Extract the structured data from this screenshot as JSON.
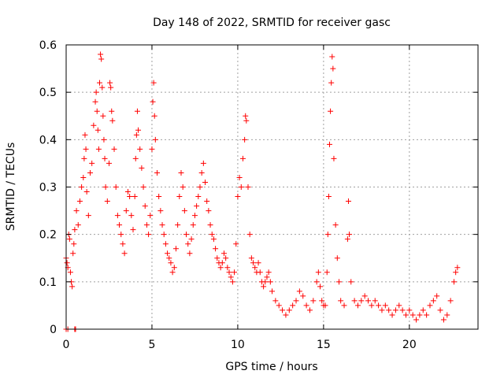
{
  "chart_data": {
    "type": "scatter",
    "title": "Day 148 of 2022, SRMTID for receiver gasc",
    "xlabel": "GPS time / hours",
    "ylabel": "SRMTID / TECUs",
    "xlim": [
      0,
      24
    ],
    "ylim": [
      0,
      0.6
    ],
    "xticks": [
      0,
      5,
      10,
      15,
      20
    ],
    "xtick_labels": [
      "0",
      "5",
      "10",
      "15",
      "20"
    ],
    "yticks": [
      0,
      0.1,
      0.2,
      0.3,
      0.4,
      0.5,
      0.6
    ],
    "ytick_labels": [
      "0",
      "0.1",
      "0.2",
      "0.3",
      "0.4",
      "0.5",
      "0.6"
    ],
    "grid": true,
    "marker": "plus",
    "color": "#ff0000",
    "series": [
      {
        "name": "SRMTID",
        "points": [
          [
            0.0,
            0.0
          ],
          [
            0.1,
            0.0
          ],
          [
            0.5,
            0.0
          ],
          [
            0.55,
            0.0
          ],
          [
            0.0,
            0.15
          ],
          [
            0.05,
            0.14
          ],
          [
            0.1,
            0.13
          ],
          [
            0.15,
            0.2
          ],
          [
            0.2,
            0.19
          ],
          [
            0.25,
            0.12
          ],
          [
            0.3,
            0.1
          ],
          [
            0.35,
            0.09
          ],
          [
            0.4,
            0.16
          ],
          [
            0.45,
            0.18
          ],
          [
            0.5,
            0.21
          ],
          [
            0.6,
            0.25
          ],
          [
            0.7,
            0.22
          ],
          [
            0.8,
            0.27
          ],
          [
            0.9,
            0.3
          ],
          [
            1.0,
            0.32
          ],
          [
            1.05,
            0.36
          ],
          [
            1.1,
            0.41
          ],
          [
            1.15,
            0.38
          ],
          [
            1.2,
            0.29
          ],
          [
            1.3,
            0.24
          ],
          [
            1.4,
            0.33
          ],
          [
            1.5,
            0.35
          ],
          [
            1.6,
            0.43
          ],
          [
            1.7,
            0.48
          ],
          [
            1.75,
            0.5
          ],
          [
            1.8,
            0.46
          ],
          [
            1.85,
            0.42
          ],
          [
            1.9,
            0.38
          ],
          [
            1.95,
            0.52
          ],
          [
            2.0,
            0.58
          ],
          [
            2.05,
            0.57
          ],
          [
            2.1,
            0.51
          ],
          [
            2.15,
            0.45
          ],
          [
            2.2,
            0.4
          ],
          [
            2.25,
            0.36
          ],
          [
            2.3,
            0.3
          ],
          [
            2.4,
            0.27
          ],
          [
            2.5,
            0.35
          ],
          [
            2.55,
            0.52
          ],
          [
            2.6,
            0.51
          ],
          [
            2.65,
            0.46
          ],
          [
            2.7,
            0.44
          ],
          [
            2.8,
            0.38
          ],
          [
            2.9,
            0.3
          ],
          [
            3.0,
            0.24
          ],
          [
            3.1,
            0.22
          ],
          [
            3.2,
            0.2
          ],
          [
            3.3,
            0.18
          ],
          [
            3.4,
            0.16
          ],
          [
            3.5,
            0.25
          ],
          [
            3.6,
            0.29
          ],
          [
            3.7,
            0.28
          ],
          [
            3.8,
            0.24
          ],
          [
            3.9,
            0.21
          ],
          [
            4.0,
            0.28
          ],
          [
            4.05,
            0.36
          ],
          [
            4.1,
            0.41
          ],
          [
            4.15,
            0.46
          ],
          [
            4.2,
            0.42
          ],
          [
            4.3,
            0.38
          ],
          [
            4.4,
            0.34
          ],
          [
            4.5,
            0.3
          ],
          [
            4.6,
            0.26
          ],
          [
            4.7,
            0.22
          ],
          [
            4.8,
            0.2
          ],
          [
            4.9,
            0.24
          ],
          [
            5.0,
            0.38
          ],
          [
            5.05,
            0.48
          ],
          [
            5.1,
            0.52
          ],
          [
            5.15,
            0.45
          ],
          [
            5.2,
            0.4
          ],
          [
            5.3,
            0.33
          ],
          [
            5.4,
            0.28
          ],
          [
            5.5,
            0.25
          ],
          [
            5.6,
            0.22
          ],
          [
            5.7,
            0.2
          ],
          [
            5.8,
            0.18
          ],
          [
            5.9,
            0.16
          ],
          [
            6.0,
            0.15
          ],
          [
            6.1,
            0.14
          ],
          [
            6.2,
            0.12
          ],
          [
            6.3,
            0.13
          ],
          [
            6.4,
            0.17
          ],
          [
            6.5,
            0.22
          ],
          [
            6.6,
            0.28
          ],
          [
            6.7,
            0.33
          ],
          [
            6.8,
            0.3
          ],
          [
            6.9,
            0.25
          ],
          [
            7.0,
            0.2
          ],
          [
            7.1,
            0.18
          ],
          [
            7.2,
            0.16
          ],
          [
            7.3,
            0.19
          ],
          [
            7.4,
            0.22
          ],
          [
            7.5,
            0.24
          ],
          [
            7.6,
            0.26
          ],
          [
            7.7,
            0.28
          ],
          [
            7.8,
            0.3
          ],
          [
            7.9,
            0.33
          ],
          [
            8.0,
            0.35
          ],
          [
            8.1,
            0.31
          ],
          [
            8.2,
            0.27
          ],
          [
            8.3,
            0.25
          ],
          [
            8.4,
            0.22
          ],
          [
            8.5,
            0.2
          ],
          [
            8.6,
            0.19
          ],
          [
            8.7,
            0.17
          ],
          [
            8.8,
            0.15
          ],
          [
            8.9,
            0.14
          ],
          [
            9.0,
            0.13
          ],
          [
            9.1,
            0.14
          ],
          [
            9.2,
            0.16
          ],
          [
            9.3,
            0.15
          ],
          [
            9.4,
            0.13
          ],
          [
            9.5,
            0.12
          ],
          [
            9.6,
            0.11
          ],
          [
            9.7,
            0.1
          ],
          [
            9.8,
            0.12
          ],
          [
            9.9,
            0.18
          ],
          [
            10.0,
            0.28
          ],
          [
            10.1,
            0.32
          ],
          [
            10.2,
            0.3
          ],
          [
            10.3,
            0.36
          ],
          [
            10.4,
            0.4
          ],
          [
            10.45,
            0.45
          ],
          [
            10.5,
            0.44
          ],
          [
            10.6,
            0.3
          ],
          [
            10.7,
            0.2
          ],
          [
            10.8,
            0.15
          ],
          [
            10.9,
            0.14
          ],
          [
            11.0,
            0.13
          ],
          [
            11.1,
            0.12
          ],
          [
            11.2,
            0.14
          ],
          [
            11.3,
            0.12
          ],
          [
            11.4,
            0.1
          ],
          [
            11.5,
            0.09
          ],
          [
            11.6,
            0.1
          ],
          [
            11.7,
            0.11
          ],
          [
            11.8,
            0.12
          ],
          [
            11.9,
            0.1
          ],
          [
            12.0,
            0.08
          ],
          [
            12.2,
            0.06
          ],
          [
            12.4,
            0.05
          ],
          [
            12.6,
            0.04
          ],
          [
            12.8,
            0.03
          ],
          [
            13.0,
            0.04
          ],
          [
            13.2,
            0.05
          ],
          [
            13.4,
            0.06
          ],
          [
            13.6,
            0.08
          ],
          [
            13.8,
            0.07
          ],
          [
            14.0,
            0.05
          ],
          [
            14.2,
            0.04
          ],
          [
            14.4,
            0.06
          ],
          [
            14.6,
            0.1
          ],
          [
            14.7,
            0.12
          ],
          [
            14.8,
            0.09
          ],
          [
            14.9,
            0.06
          ],
          [
            15.0,
            0.05
          ],
          [
            15.1,
            0.05
          ],
          [
            15.2,
            0.12
          ],
          [
            15.25,
            0.2
          ],
          [
            15.3,
            0.28
          ],
          [
            15.35,
            0.39
          ],
          [
            15.4,
            0.46
          ],
          [
            15.45,
            0.52
          ],
          [
            15.5,
            0.575
          ],
          [
            15.55,
            0.55
          ],
          [
            15.6,
            0.36
          ],
          [
            15.7,
            0.22
          ],
          [
            15.8,
            0.15
          ],
          [
            15.9,
            0.1
          ],
          [
            16.0,
            0.06
          ],
          [
            16.2,
            0.05
          ],
          [
            16.4,
            0.19
          ],
          [
            16.45,
            0.27
          ],
          [
            16.5,
            0.2
          ],
          [
            16.6,
            0.1
          ],
          [
            16.8,
            0.06
          ],
          [
            17.0,
            0.05
          ],
          [
            17.2,
            0.06
          ],
          [
            17.4,
            0.07
          ],
          [
            17.6,
            0.06
          ],
          [
            17.8,
            0.05
          ],
          [
            18.0,
            0.06
          ],
          [
            18.2,
            0.05
          ],
          [
            18.4,
            0.04
          ],
          [
            18.6,
            0.05
          ],
          [
            18.8,
            0.04
          ],
          [
            19.0,
            0.03
          ],
          [
            19.2,
            0.04
          ],
          [
            19.4,
            0.05
          ],
          [
            19.6,
            0.04
          ],
          [
            19.8,
            0.03
          ],
          [
            20.0,
            0.04
          ],
          [
            20.2,
            0.03
          ],
          [
            20.4,
            0.02
          ],
          [
            20.6,
            0.03
          ],
          [
            20.8,
            0.04
          ],
          [
            21.0,
            0.03
          ],
          [
            21.2,
            0.05
          ],
          [
            21.4,
            0.06
          ],
          [
            21.6,
            0.07
          ],
          [
            21.8,
            0.04
          ],
          [
            22.0,
            0.02
          ],
          [
            22.2,
            0.03
          ],
          [
            22.4,
            0.06
          ],
          [
            22.6,
            0.1
          ],
          [
            22.7,
            0.12
          ],
          [
            22.8,
            0.13
          ]
        ]
      }
    ]
  }
}
